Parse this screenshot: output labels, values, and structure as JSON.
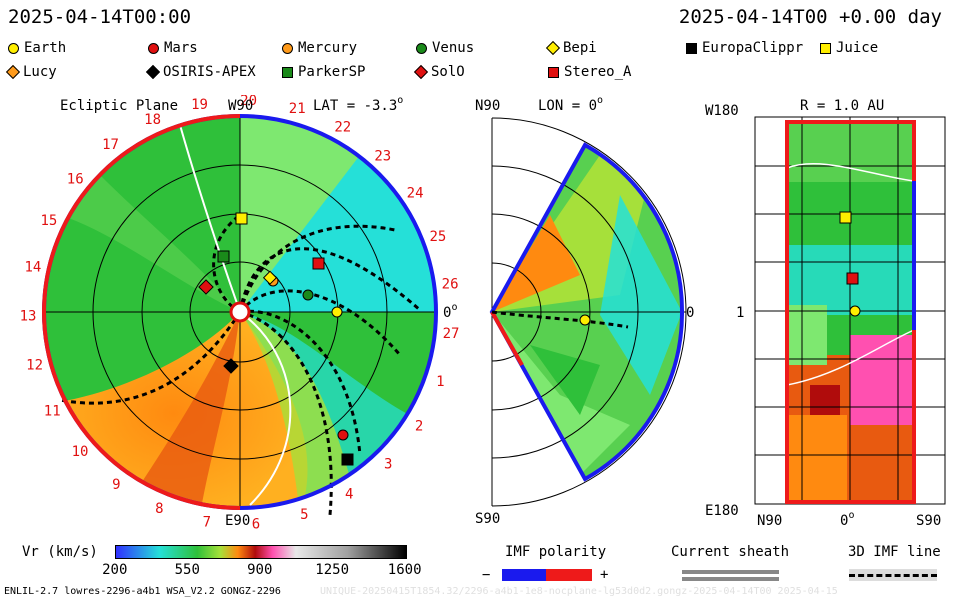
{
  "header": {
    "left_date": "2025-04-14T00:00",
    "right_date": "2025-04-14T00 +0.00 day"
  },
  "legend": [
    {
      "label": "Earth",
      "color": "#ffee00",
      "shape": "circle"
    },
    {
      "label": "Mars",
      "color": "#e01010",
      "shape": "circle"
    },
    {
      "label": "Mercury",
      "color": "#ff9a1a",
      "shape": "circle"
    },
    {
      "label": "Venus",
      "color": "#1a8a1a",
      "shape": "circle"
    },
    {
      "label": "Bepi",
      "color": "#ffee00",
      "shape": "diamond"
    },
    {
      "label": "EuropaClippr",
      "color": "#000000",
      "shape": "square"
    },
    {
      "label": "Juice",
      "color": "#ffee00",
      "shape": "square"
    },
    {
      "label": "Lucy",
      "color": "#ff9a1a",
      "shape": "diamond"
    },
    {
      "label": "OSIRIS-APEX",
      "color": "#000000",
      "shape": "diamond"
    },
    {
      "label": "ParkerSP",
      "color": "#1a8a1a",
      "shape": "square"
    },
    {
      "label": "SolO",
      "color": "#e01010",
      "shape": "diamond"
    },
    {
      "label": "Stereo_A",
      "color": "#e01010",
      "shape": "square"
    }
  ],
  "panel1": {
    "title": "Ecliptic Plane",
    "top_label": "W90",
    "lat_label": "LAT = -3.3",
    "deg": "o",
    "right_label": "0",
    "bottom_label": "E90",
    "rotations": [
      "19",
      "20",
      "21",
      "22",
      "23",
      "24",
      "25",
      "26",
      "27",
      "1",
      "2",
      "3",
      "4",
      "5",
      "6",
      "7",
      "8",
      "9",
      "10",
      "11",
      "12",
      "13",
      "14",
      "15",
      "16",
      "17",
      "18"
    ]
  },
  "panel2": {
    "top_left": "N90",
    "lon_label": "LON = 0",
    "deg": "o",
    "right_label": "0",
    "bottom_label": "S90"
  },
  "panel3": {
    "top_left": "W180",
    "r_label": "R = 1.0 AU",
    "mid_left": "1",
    "bottom_left": "E180",
    "xticks": [
      "N90",
      "0",
      "S90"
    ],
    "deg": "o"
  },
  "colorbar": {
    "label": "Vr (km/s)",
    "ticks": [
      "200",
      "550",
      "900",
      "1250",
      "1600"
    ]
  },
  "imf": {
    "label": "IMF polarity",
    "minus": "−",
    "plus": "+"
  },
  "sheath": {
    "label": "Current sheath"
  },
  "imfline": {
    "label": "3D IMF line"
  },
  "footer": {
    "left": "ENLIL-2.7 lowres-2296-a4b1 WSA_V2.2 GONGZ-2296",
    "right": "UNIQUE-20250415T1854.32/2296-a4b1-1e8-nocplane-lg53d0d2.gongz-2025-04-14T00 2025-04-15"
  }
}
